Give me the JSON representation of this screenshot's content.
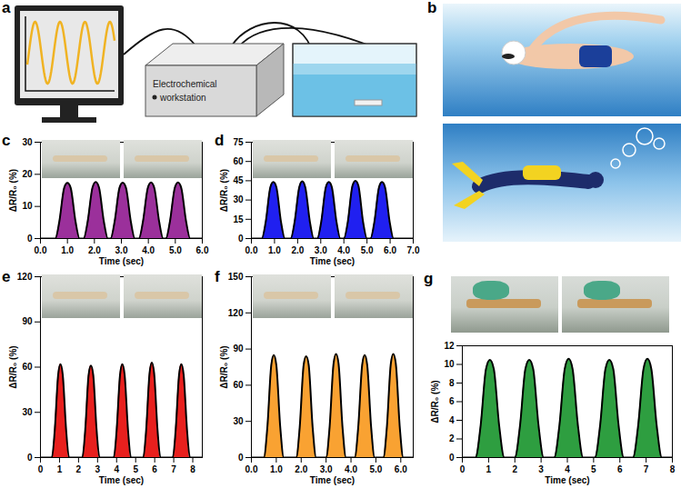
{
  "diagram": {
    "panels": [
      {
        "label": "a",
        "device_label": [
          "Electrochemical",
          "workstation"
        ]
      },
      {
        "label": "b"
      }
    ]
  },
  "chart_data": [
    {
      "type": "area",
      "title": "c",
      "xlabel": "Time (sec)",
      "ylabel": "ΔR/R₀ (%)",
      "color": "#9b309b",
      "xlim": [
        0,
        6
      ],
      "xticks": [
        0,
        1,
        2,
        3,
        4,
        5,
        6
      ],
      "ylim": [
        0,
        30
      ],
      "yticks": [
        0,
        10,
        20,
        30
      ],
      "x": [
        0,
        0.55,
        0.7,
        0.88,
        1.0,
        1.12,
        1.3,
        1.45,
        1.6,
        1.75,
        1.93,
        2.05,
        2.17,
        2.35,
        2.5,
        2.6,
        2.75,
        2.93,
        3.05,
        3.17,
        3.35,
        3.5,
        3.65,
        3.8,
        3.98,
        4.1,
        4.22,
        4.4,
        4.55,
        4.65,
        4.8,
        4.98,
        5.1,
        5.22,
        5.4,
        5.55,
        6
      ],
      "values": [
        0,
        0,
        5.3,
        15.8,
        17.3,
        15.8,
        5.3,
        0,
        0,
        5.3,
        15.9,
        17.6,
        15.9,
        5.3,
        0,
        0,
        5.3,
        15.8,
        17.4,
        15.8,
        5.3,
        0,
        0,
        5.3,
        15.8,
        17.5,
        15.8,
        5.3,
        0,
        0,
        5.3,
        15.8,
        17.5,
        15.8,
        5.3,
        0,
        0
      ]
    },
    {
      "type": "area",
      "title": "d",
      "xlabel": "Time (sec)",
      "ylabel": "ΔR/R₀ (%)",
      "color": "#2020f0",
      "xlim": [
        0,
        7
      ],
      "xticks": [
        0,
        1,
        2,
        3,
        4,
        5,
        6,
        7
      ],
      "ylim": [
        0,
        75
      ],
      "yticks": [
        0,
        15,
        30,
        45,
        60,
        75
      ],
      "x": [
        0,
        0.45,
        0.62,
        0.82,
        0.95,
        1.08,
        1.28,
        1.45,
        1.7,
        1.87,
        2.07,
        2.2,
        2.33,
        2.53,
        2.7,
        2.85,
        3.02,
        3.22,
        3.35,
        3.48,
        3.68,
        3.85,
        4.0,
        4.17,
        4.37,
        4.5,
        4.63,
        4.83,
        5.0,
        5.15,
        5.32,
        5.52,
        5.65,
        5.78,
        5.98,
        6.15,
        7
      ],
      "values": [
        0,
        0,
        13,
        40,
        44,
        40,
        13,
        0,
        0,
        13,
        40,
        44.5,
        40,
        13,
        0,
        0,
        13,
        40,
        44,
        40,
        13,
        0,
        0,
        13,
        41,
        45,
        41,
        13,
        0,
        0,
        13,
        40,
        44,
        40,
        13,
        0,
        0
      ]
    },
    {
      "type": "area",
      "title": "e",
      "xlabel": "Time (sec)",
      "ylabel": "ΔR/R₀ (%)",
      "color": "#e8201e",
      "xlim": [
        0,
        8.5
      ],
      "xticks": [
        0,
        1,
        2,
        3,
        4,
        5,
        6,
        7,
        8
      ],
      "ylim": [
        0,
        120
      ],
      "yticks": [
        0,
        30,
        60,
        90,
        120
      ],
      "x": [
        0,
        0.6,
        0.75,
        0.93,
        1.05,
        1.17,
        1.35,
        1.5,
        2.2,
        2.35,
        2.53,
        2.65,
        2.77,
        2.95,
        3.1,
        3.85,
        4.0,
        4.18,
        4.3,
        4.42,
        4.6,
        4.75,
        5.4,
        5.55,
        5.73,
        5.85,
        5.97,
        6.15,
        6.3,
        6.95,
        7.1,
        7.28,
        7.4,
        7.52,
        7.7,
        7.85,
        8.5
      ],
      "values": [
        0,
        0,
        18,
        55,
        62,
        55,
        18,
        0,
        0,
        18,
        55,
        61,
        55,
        18,
        0,
        0,
        18,
        55,
        62,
        55,
        18,
        0,
        0,
        18,
        56,
        63,
        56,
        18,
        0,
        0,
        18,
        55,
        62,
        55,
        18,
        0,
        0
      ]
    },
    {
      "type": "area",
      "title": "f",
      "xlabel": "Time (sec)",
      "ylabel": "ΔR/R₀ (%)",
      "color": "#f9a232",
      "xlim": [
        0,
        6.5
      ],
      "xticks": [
        0,
        1,
        2,
        3,
        4,
        5,
        6
      ],
      "ylim": [
        0,
        150
      ],
      "yticks": [
        0,
        30,
        60,
        90,
        120,
        150
      ],
      "x": [
        0,
        0.5,
        0.64,
        0.8,
        0.9,
        1.0,
        1.16,
        1.3,
        1.8,
        1.94,
        2.1,
        2.2,
        2.3,
        2.46,
        2.6,
        3.0,
        3.14,
        3.3,
        3.4,
        3.5,
        3.66,
        3.8,
        4.15,
        4.29,
        4.45,
        4.55,
        4.65,
        4.81,
        4.95,
        5.3,
        5.44,
        5.6,
        5.7,
        5.8,
        5.96,
        6.1,
        6.5
      ],
      "values": [
        0,
        0,
        25,
        77,
        85,
        77,
        25,
        0,
        0,
        25,
        77,
        84,
        77,
        25,
        0,
        0,
        25,
        78,
        86,
        78,
        25,
        0,
        0,
        25,
        77,
        85,
        77,
        25,
        0,
        0,
        25,
        78,
        86,
        78,
        25,
        0,
        0
      ]
    },
    {
      "type": "area",
      "title": "g",
      "xlabel": "Time (sec)",
      "ylabel": "ΔR/R₀ (%)",
      "color": "#2e9e40",
      "xlim": [
        0,
        8
      ],
      "xticks": [
        0,
        1,
        2,
        3,
        4,
        5,
        6,
        7,
        8
      ],
      "ylim": [
        0,
        12
      ],
      "yticks": [
        0,
        2,
        4,
        6,
        8,
        10,
        12
      ],
      "x": [
        0,
        0.5,
        0.7,
        0.9,
        1.05,
        1.2,
        1.4,
        1.6,
        2.0,
        2.2,
        2.4,
        2.55,
        2.7,
        2.9,
        3.1,
        3.5,
        3.7,
        3.9,
        4.05,
        4.2,
        4.4,
        4.6,
        5.05,
        5.25,
        5.45,
        5.6,
        5.75,
        5.95,
        6.15,
        6.5,
        6.7,
        6.9,
        7.05,
        7.2,
        7.4,
        7.6,
        8
      ],
      "values": [
        0,
        0,
        3.5,
        9.5,
        10.5,
        9.5,
        3.5,
        0,
        0,
        3.5,
        9.5,
        10.5,
        9.5,
        3.5,
        0,
        0,
        3.5,
        9.5,
        10.6,
        9.5,
        3.5,
        0,
        0,
        3.5,
        9.5,
        10.5,
        9.5,
        3.5,
        0,
        0,
        3.5,
        9.5,
        10.6,
        9.5,
        3.5,
        0,
        0
      ]
    }
  ]
}
